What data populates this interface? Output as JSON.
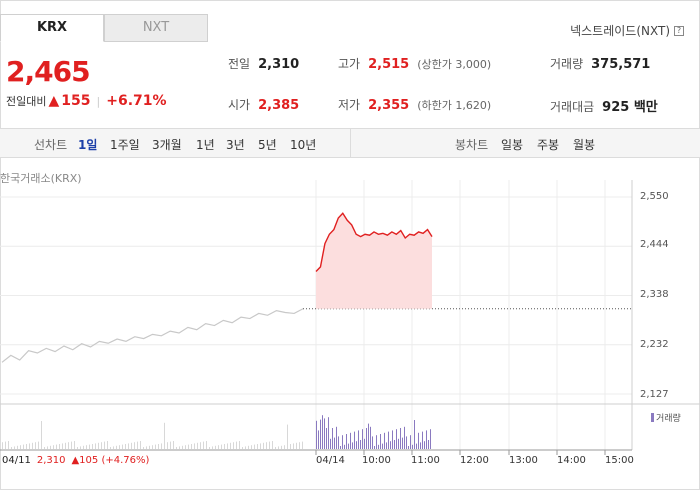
{
  "tabs": [
    {
      "label": "KRX",
      "active": true
    },
    {
      "label": "NXT",
      "active": false
    }
  ],
  "nxt_link": "넥스트레이드(NXT)",
  "help_glyph": "?",
  "price": {
    "current": "2,465",
    "change_label": "전일대비",
    "change_arrow": "▲",
    "change_value": "155",
    "change_pct": "+6.71%"
  },
  "stats": {
    "prev_close": {
      "label": "전일",
      "value": "2,310"
    },
    "open": {
      "label": "시가",
      "value": "2,385"
    },
    "high": {
      "label": "고가",
      "value": "2,515",
      "sub": "(상한가 3,000)"
    },
    "low": {
      "label": "저가",
      "value": "2,355",
      "sub": "(하한가 1,620)"
    },
    "volume": {
      "label": "거래량",
      "value": "375,571"
    },
    "amount": {
      "label": "거래대금",
      "value": "925 백만"
    }
  },
  "period_bar": {
    "line_label": "선차트",
    "line_items": [
      "1일",
      "1주일",
      "3개월",
      "1년",
      "3년",
      "5년",
      "10년"
    ],
    "active": "1일",
    "candle_label": "봉차트",
    "candle_items": [
      "일봉",
      "주봉",
      "월봉"
    ]
  },
  "chart": {
    "source_label": "한국거래소(KRX)",
    "volume_legend": "거래량",
    "accent_color": "#e02020",
    "prev_line_color": "#c8c8c8",
    "volume_color": "#8a7ac0"
  },
  "chart_data": {
    "type": "line",
    "y_ticks": [
      "2,550",
      "2,444",
      "2,338",
      "2,232",
      "2,127"
    ],
    "x_ticks": [
      "04/14",
      "10:00",
      "11:00",
      "12:00",
      "13:00",
      "14:00",
      "15:00"
    ],
    "ylim": [
      2127,
      2550
    ],
    "prev_close": 2310,
    "prev_day": {
      "date": "04/11",
      "close": "2,310",
      "change_arrow": "▲",
      "change": "105",
      "pct": "(+4.76%)"
    },
    "series": [
      {
        "values": [
          2195,
          2210,
          2200,
          2220,
          2215,
          2225,
          2218,
          2230,
          2222,
          2235,
          2228,
          2240,
          2236,
          2245,
          2240,
          2250,
          2246,
          2255,
          2252,
          2262,
          2258,
          2270,
          2265,
          2278,
          2274,
          2285,
          2280,
          2292,
          2289,
          2300,
          2296,
          2306,
          2302,
          2300,
          2310
        ]
      },
      {
        "values": [
          2390,
          2400,
          2450,
          2470,
          2480,
          2505,
          2515,
          2500,
          2490,
          2470,
          2465,
          2470,
          2468,
          2475,
          2470,
          2472,
          2468,
          2475,
          2470,
          2478,
          2462,
          2470,
          2468,
          2475,
          2472,
          2480,
          2465
        ]
      }
    ]
  }
}
